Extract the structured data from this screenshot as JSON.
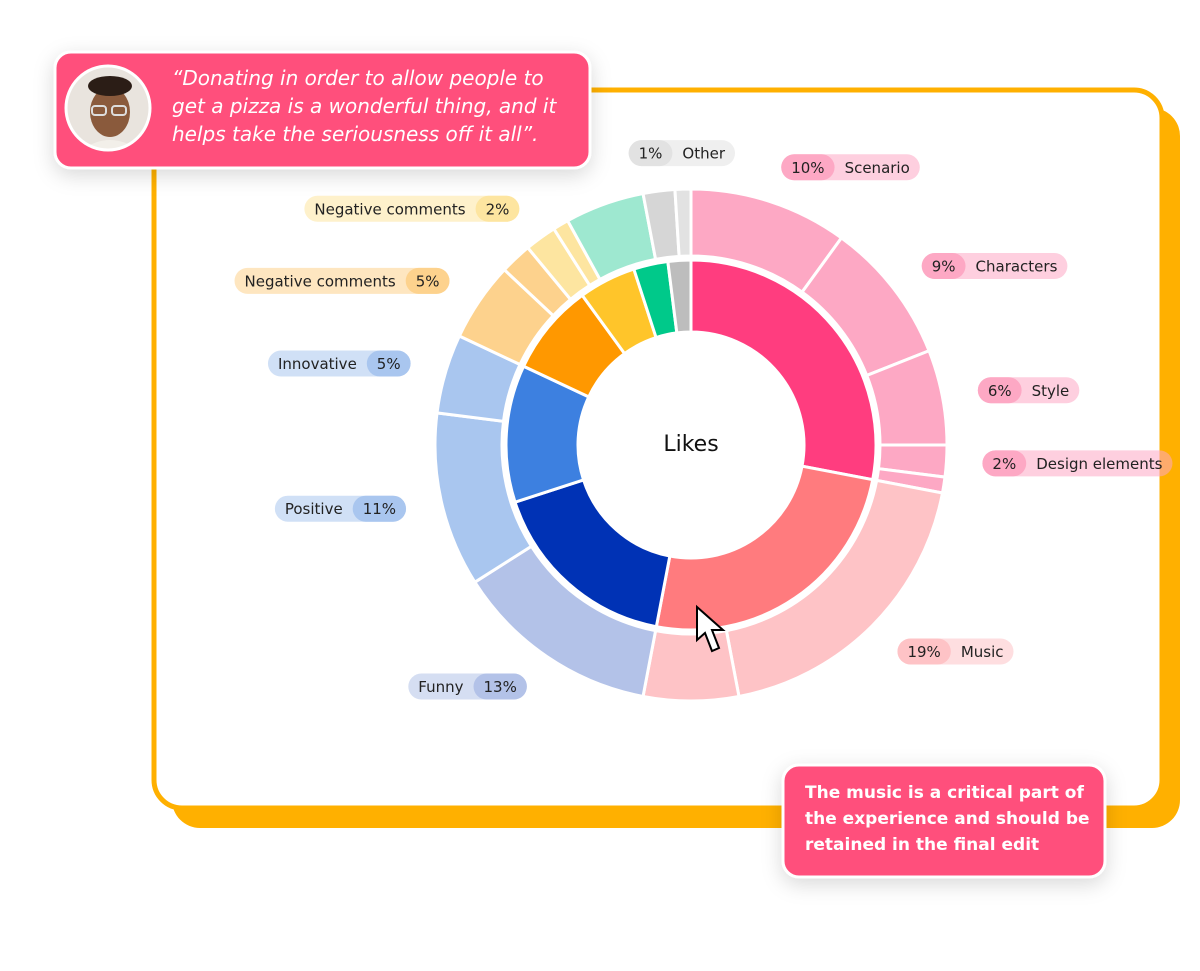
{
  "quote": "“Donating in order to allow people to get a pizza is a wonderful thing, and it helps take the seriousness off it all”.",
  "callout": "The music is a critical part of the experience and should be retained in the final edit",
  "chart_data": {
    "type": "sunburst",
    "center_label": "Likes",
    "rings": [
      {
        "values": [
          28,
          25,
          17,
          12,
          8,
          5,
          3,
          2
        ],
        "colors": [
          "#ff3d7f",
          "#ff7b7e",
          "#0032b5",
          "#3d80e0",
          "#ff9800",
          "#ffc52a",
          "#00c98a",
          "#bdbdbd"
        ]
      },
      {
        "categories": [
          "Scenario",
          "Characters",
          "Style",
          "Design elements",
          null,
          "Music",
          null,
          "Funny",
          "Positive",
          "Innovative",
          "Negative comments",
          null,
          "Negative comments",
          null,
          null,
          null,
          "Other"
        ],
        "values": [
          10,
          9,
          6,
          2,
          1,
          19,
          6,
          13,
          11,
          5,
          5,
          2,
          2,
          1,
          5,
          2,
          1
        ],
        "value_labels": [
          "10%",
          "9%",
          "6%",
          "2%",
          null,
          "19%",
          null,
          "13%",
          "11%",
          "5%",
          "5%",
          null,
          "2%",
          null,
          null,
          null,
          "1%"
        ],
        "colors": [
          "#fda8c4",
          "#fda8c4",
          "#fda8c4",
          "#fda8c4",
          "#fda8c4",
          "#fec3c6",
          "#fec3c6",
          "#b3c2e8",
          "#a9c6ef",
          "#a9c6ef",
          "#fdd28d",
          "#fdd28d",
          "#fde5a0",
          "#fde5a0",
          "#9ee8d0",
          "#d6d6d6",
          "#e2e2e2"
        ]
      }
    ]
  }
}
